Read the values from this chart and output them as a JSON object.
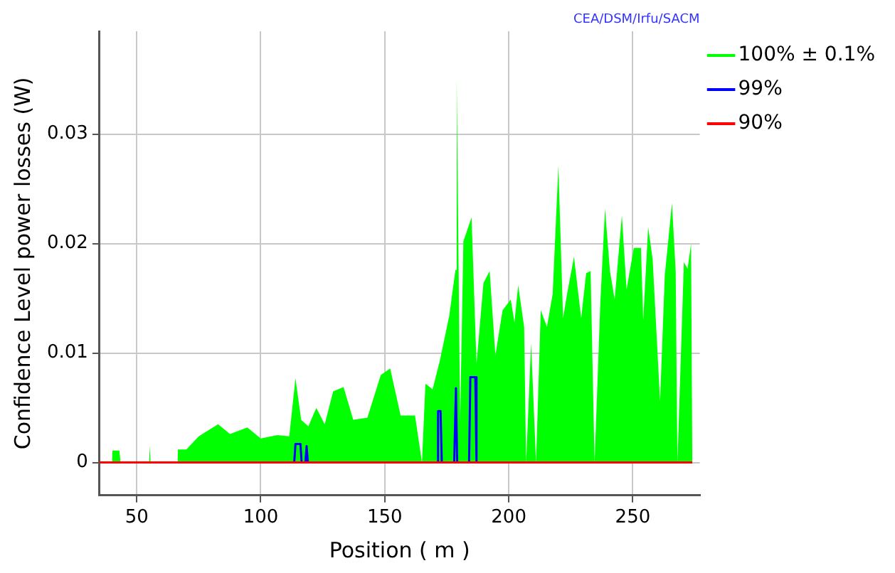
{
  "chart_data": {
    "type": "line",
    "xlabel": "Position ( m )",
    "ylabel": "Confidence Level power losses (W)",
    "annotations": [
      "CEA/DSM/Irfu/SACM"
    ],
    "xlim": [
      35,
      277
    ],
    "xticks": [
      50,
      100,
      150,
      200,
      250
    ],
    "ylim": [
      -0.003,
      0.0394
    ],
    "yticks": [
      0,
      0.01,
      0.02,
      0.03
    ],
    "grid": true,
    "legend": "right",
    "marker": "none",
    "line_style": "solid",
    "series": [
      {
        "name": "100% ± 0.1%",
        "type": "area",
        "color": "#00ff00",
        "x": [
          40,
          40.2,
          43,
          43.5,
          55,
          55.2,
          55.6,
          66.5,
          66.6,
          70,
          75,
          82.8,
          87.6,
          93.3,
          94.6,
          100,
          106.7,
          111.5,
          114,
          116.3,
          119.2,
          122.4,
          125.8,
          129.2,
          133.4,
          137.3,
          143,
          148.4,
          152.2,
          156.4,
          162.2,
          165,
          166.4,
          169.3,
          172.2,
          176,
          178.5,
          179,
          180.4,
          181.7,
          185,
          187,
          189.8,
          192.3,
          194.6,
          197.5,
          200.8,
          202.3,
          203.8,
          206.2,
          207,
          209,
          211,
          212.9,
          215.4,
          217.7,
          220,
          221.9,
          223.5,
          226.3,
          229.2,
          231.2,
          233,
          234.6,
          236.9,
          238.8,
          240.8,
          242.7,
          245.6,
          247.5,
          250.4,
          253.3,
          254.2,
          256.2,
          258,
          261,
          262.9,
          265.8,
          267.3,
          268,
          270.6,
          272.1,
          273.5,
          274
        ],
        "values": [
          0,
          0.0011,
          0.0011,
          0,
          0,
          0.0015,
          0,
          0,
          0.0012,
          0.0012,
          0.0024,
          0.0035,
          0.0026,
          0.0031,
          0.0032,
          0.0022,
          0.0025,
          0.0024,
          0.0077,
          0.0039,
          0.0033,
          0.005,
          0.0035,
          0.0065,
          0.0069,
          0.0039,
          0.0041,
          0.008,
          0.0086,
          0.0043,
          0.0043,
          0,
          0.0072,
          0.0067,
          0.0093,
          0.0134,
          0.0176,
          0.0351,
          0.0039,
          0.0202,
          0.0224,
          0.009,
          0.0164,
          0.0175,
          0.0098,
          0.0139,
          0.0149,
          0.0128,
          0.0162,
          0.0124,
          0,
          0.0109,
          0,
          0.0139,
          0.0124,
          0.0154,
          0.0271,
          0.0132,
          0.0154,
          0.0188,
          0.0132,
          0.0173,
          0.0175,
          0,
          0.0145,
          0.0232,
          0.0175,
          0.0149,
          0.0226,
          0.0158,
          0.0196,
          0.0196,
          0.013,
          0.0215,
          0.0186,
          0.0056,
          0.0171,
          0.0237,
          0.0175,
          0,
          0.0183,
          0.0177,
          0.02,
          0
        ]
      },
      {
        "name": "99%",
        "type": "line",
        "color": "#0000ff",
        "x": [
          113.5,
          114,
          116,
          116.5,
          117,
          118,
          118.5,
          119,
          145,
          171,
          171.5,
          172.5,
          173,
          175,
          178,
          178.7,
          179.2,
          182,
          184,
          184.5,
          186.5,
          187
        ],
        "values": [
          0,
          0.0017,
          0.0017,
          0,
          null,
          0,
          0.0015,
          0,
          null,
          0,
          0.0047,
          0.0047,
          0,
          null,
          0,
          0.0068,
          0,
          null,
          0,
          0.0078,
          0.0078,
          0
        ]
      },
      {
        "name": "90%",
        "type": "line",
        "color": "#ff0000",
        "x": [
          35,
          274
        ],
        "values": [
          0,
          0
        ]
      }
    ]
  }
}
